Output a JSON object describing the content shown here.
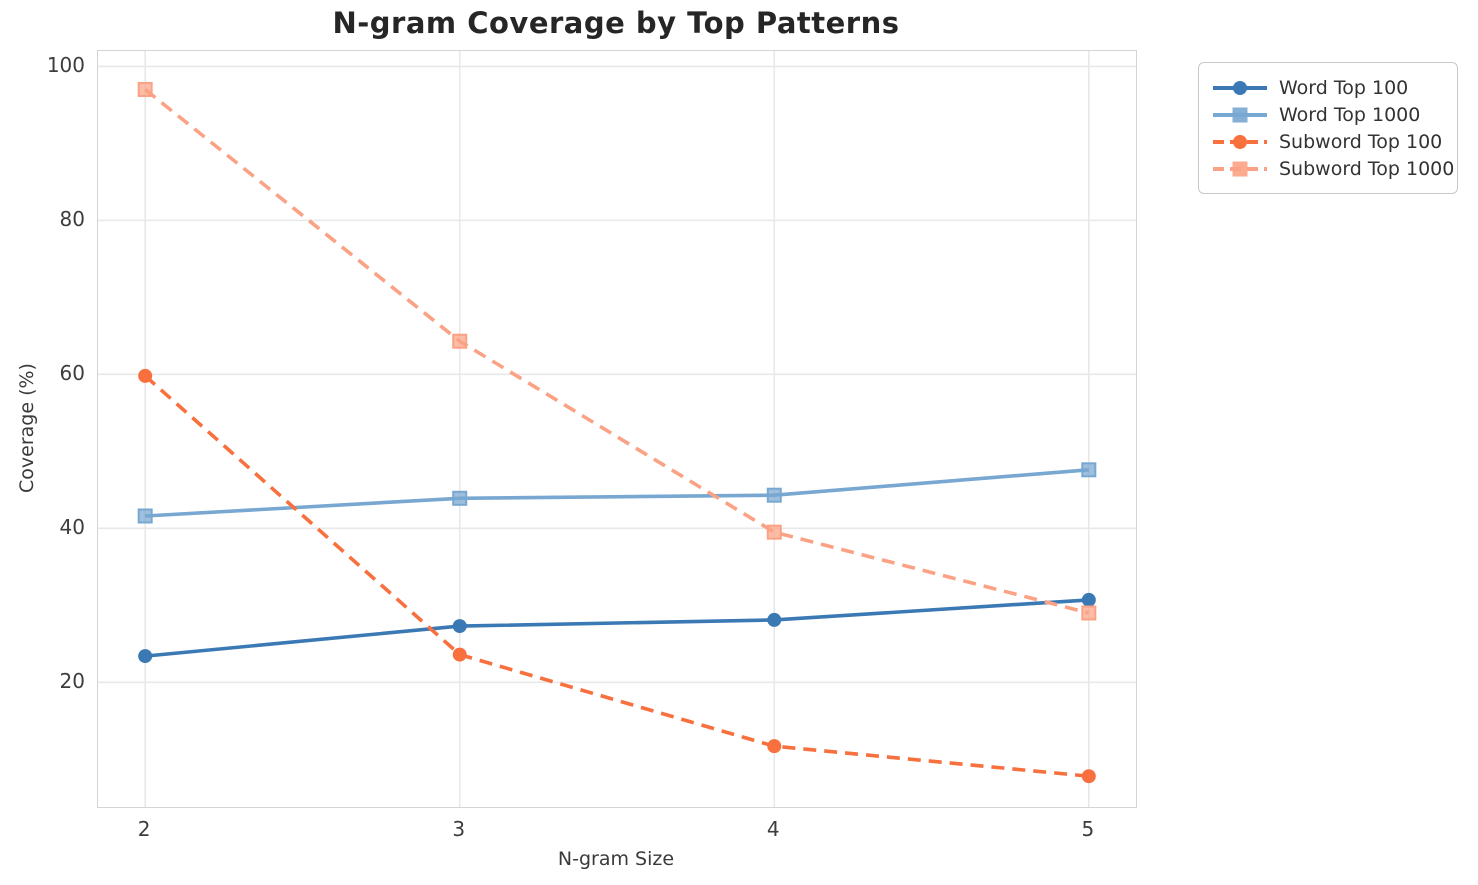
{
  "title": "N-gram Coverage by Top Patterns",
  "chart_data": {
    "type": "line",
    "title": "N-gram Coverage by Top Patterns",
    "xlabel": "N-gram Size",
    "ylabel": "Coverage (%)",
    "x": [
      2,
      3,
      4,
      5
    ],
    "xticks": [
      "2",
      "3",
      "4",
      "5"
    ],
    "yticks": [
      20,
      40,
      60,
      80,
      100
    ],
    "xlim": [
      1.85,
      5.15
    ],
    "ylim": [
      3.8,
      102
    ],
    "grid": true,
    "legend_position": "outside-upper-right",
    "series": [
      {
        "name": "Word Top 100",
        "values": [
          23.4,
          27.3,
          28.1,
          30.7
        ],
        "color": "#3b79b5",
        "line_style": "solid",
        "marker": "circle"
      },
      {
        "name": "Word Top 1000",
        "values": [
          41.6,
          43.9,
          44.3,
          47.6
        ],
        "color": "#78a7d1",
        "line_style": "solid",
        "marker": "square"
      },
      {
        "name": "Subword Top 100",
        "values": [
          59.8,
          23.6,
          11.7,
          7.8
        ],
        "color": "#f7703e",
        "line_style": "dashed",
        "marker": "circle"
      },
      {
        "name": "Subword Top 1000",
        "values": [
          97.0,
          64.3,
          39.5,
          29.0
        ],
        "color": "#fba285",
        "line_style": "dashed",
        "marker": "square"
      }
    ],
    "colors": {
      "grid": "#e8e8e8",
      "spine": "#d4d4d4",
      "title_text": "#262626",
      "tick_text": "#3d3d3d"
    }
  }
}
